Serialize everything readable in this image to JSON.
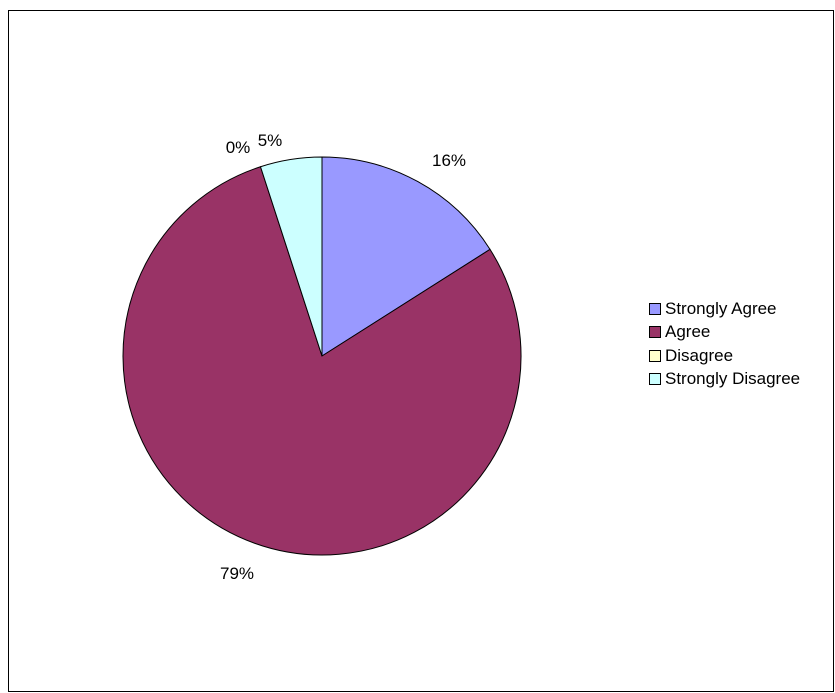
{
  "chart_data": {
    "type": "pie",
    "title": "",
    "categories": [
      "Strongly Agree",
      "Agree",
      "Disagree",
      "Strongly Disagree"
    ],
    "values": [
      16,
      79,
      0,
      5
    ],
    "data_labels": [
      "16%",
      "79%",
      "0%",
      "5%"
    ],
    "colors": [
      "#9999ff",
      "#993366",
      "#ffffcc",
      "#ccffff"
    ],
    "legend_position": "right",
    "start_angle": "12 o'clock, clockwise"
  }
}
